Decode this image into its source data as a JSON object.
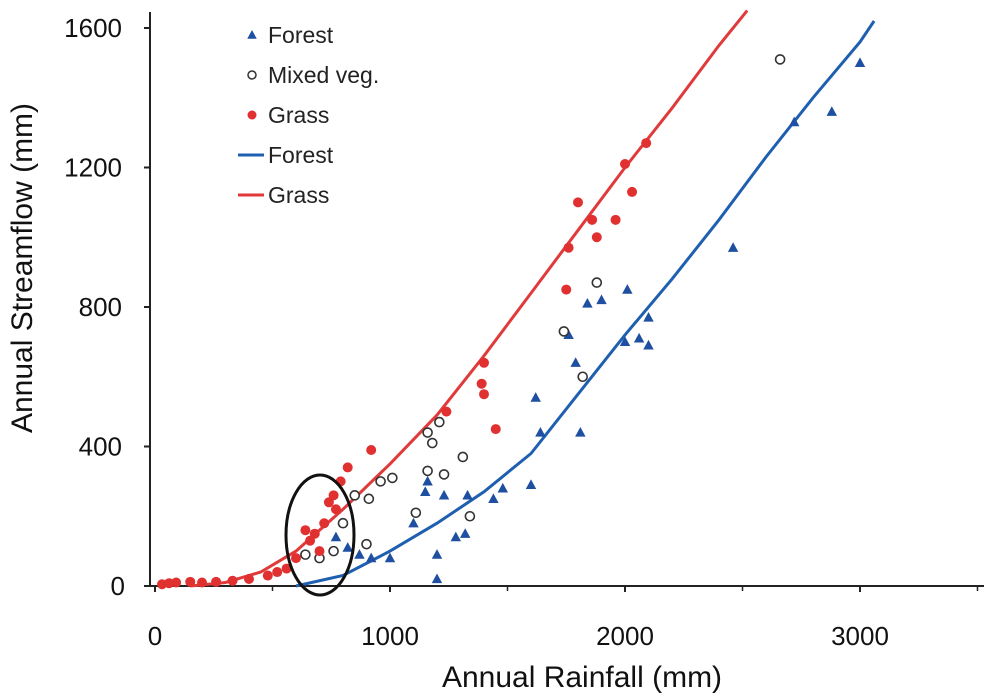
{
  "chart_data": {
    "type": "scatter",
    "xlabel": "Annual Rainfall (mm)",
    "ylabel": "Annual Streamflow (mm)",
    "xlim": [
      0,
      3500
    ],
    "ylim": [
      0,
      1650
    ],
    "xticks": [
      "0",
      "1000",
      "2000",
      "3000"
    ],
    "yticks": [
      "0",
      "400",
      "800",
      "1200",
      "1600"
    ],
    "xtick_values": [
      0,
      1000,
      2000,
      3000
    ],
    "ytick_values": [
      0,
      400,
      800,
      1200,
      1600
    ],
    "legend": {
      "position": "top-left",
      "entries": [
        "Forest",
        "Mixed veg.",
        "Grass",
        "Forest",
        "Grass"
      ]
    },
    "colors": {
      "forest": "#1f4fa0",
      "mixed": "#333333",
      "grass": "#e03030",
      "forest_line": "#1f5fb0",
      "grass_line": "#e03a3a"
    },
    "annotation": "ellipse around cluster near 720 mm rainfall",
    "series": [
      {
        "name": "Forest",
        "kind": "points",
        "marker": "triangle",
        "points": [
          [
            770,
            140
          ],
          [
            820,
            110
          ],
          [
            870,
            90
          ],
          [
            920,
            80
          ],
          [
            1000,
            80
          ],
          [
            1100,
            180
          ],
          [
            1150,
            270
          ],
          [
            1160,
            300
          ],
          [
            1200,
            90
          ],
          [
            1200,
            20
          ],
          [
            1230,
            260
          ],
          [
            1280,
            140
          ],
          [
            1320,
            150
          ],
          [
            1330,
            260
          ],
          [
            1440,
            250
          ],
          [
            1480,
            280
          ],
          [
            1600,
            290
          ],
          [
            1620,
            540
          ],
          [
            1640,
            440
          ],
          [
            1760,
            720
          ],
          [
            1790,
            640
          ],
          [
            1810,
            440
          ],
          [
            1840,
            810
          ],
          [
            1900,
            820
          ],
          [
            2010,
            850
          ],
          [
            2000,
            700
          ],
          [
            2060,
            710
          ],
          [
            2100,
            770
          ],
          [
            2100,
            690
          ],
          [
            2460,
            970
          ],
          [
            2720,
            1330
          ],
          [
            2880,
            1360
          ],
          [
            3000,
            1500
          ]
        ]
      },
      {
        "name": "Mixed veg.",
        "kind": "points",
        "marker": "circle",
        "points": [
          [
            640,
            90
          ],
          [
            700,
            80
          ],
          [
            760,
            100
          ],
          [
            800,
            180
          ],
          [
            850,
            260
          ],
          [
            900,
            120
          ],
          [
            910,
            250
          ],
          [
            960,
            300
          ],
          [
            1010,
            310
          ],
          [
            1110,
            210
          ],
          [
            1160,
            330
          ],
          [
            1160,
            440
          ],
          [
            1180,
            410
          ],
          [
            1210,
            470
          ],
          [
            1230,
            320
          ],
          [
            1310,
            370
          ],
          [
            1340,
            200
          ],
          [
            1740,
            730
          ],
          [
            1820,
            600
          ],
          [
            1880,
            870
          ],
          [
            2660,
            1510
          ]
        ]
      },
      {
        "name": "Grass",
        "kind": "points",
        "marker": "dot",
        "points": [
          [
            30,
            5
          ],
          [
            60,
            8
          ],
          [
            90,
            10
          ],
          [
            150,
            12
          ],
          [
            200,
            10
          ],
          [
            260,
            12
          ],
          [
            330,
            15
          ],
          [
            400,
            20
          ],
          [
            480,
            30
          ],
          [
            520,
            40
          ],
          [
            560,
            50
          ],
          [
            600,
            80
          ],
          [
            640,
            160
          ],
          [
            660,
            130
          ],
          [
            680,
            150
          ],
          [
            700,
            100
          ],
          [
            720,
            180
          ],
          [
            740,
            240
          ],
          [
            760,
            260
          ],
          [
            770,
            220
          ],
          [
            790,
            300
          ],
          [
            820,
            340
          ],
          [
            920,
            390
          ],
          [
            1240,
            500
          ],
          [
            1390,
            580
          ],
          [
            1400,
            550
          ],
          [
            1400,
            640
          ],
          [
            1450,
            450
          ],
          [
            1750,
            850
          ],
          [
            1760,
            970
          ],
          [
            1800,
            1100
          ],
          [
            1860,
            1050
          ],
          [
            1880,
            1000
          ],
          [
            1960,
            1050
          ],
          [
            2000,
            1210
          ],
          [
            2030,
            1130
          ],
          [
            2090,
            1270
          ]
        ]
      },
      {
        "name": "Forest",
        "kind": "line",
        "points": [
          [
            600,
            0
          ],
          [
            800,
            30
          ],
          [
            1000,
            100
          ],
          [
            1200,
            180
          ],
          [
            1400,
            270
          ],
          [
            1600,
            380
          ],
          [
            1800,
            550
          ],
          [
            2000,
            720
          ],
          [
            2200,
            880
          ],
          [
            2400,
            1050
          ],
          [
            2600,
            1230
          ],
          [
            2800,
            1400
          ],
          [
            3000,
            1560
          ],
          [
            3060,
            1620
          ]
        ]
      },
      {
        "name": "Grass",
        "kind": "line",
        "points": [
          [
            150,
            0
          ],
          [
            300,
            10
          ],
          [
            450,
            40
          ],
          [
            600,
            100
          ],
          [
            800,
            220
          ],
          [
            1000,
            350
          ],
          [
            1200,
            490
          ],
          [
            1400,
            660
          ],
          [
            1600,
            840
          ],
          [
            1800,
            1020
          ],
          [
            2000,
            1200
          ],
          [
            2200,
            1370
          ],
          [
            2400,
            1550
          ],
          [
            2520,
            1650
          ]
        ]
      }
    ]
  }
}
